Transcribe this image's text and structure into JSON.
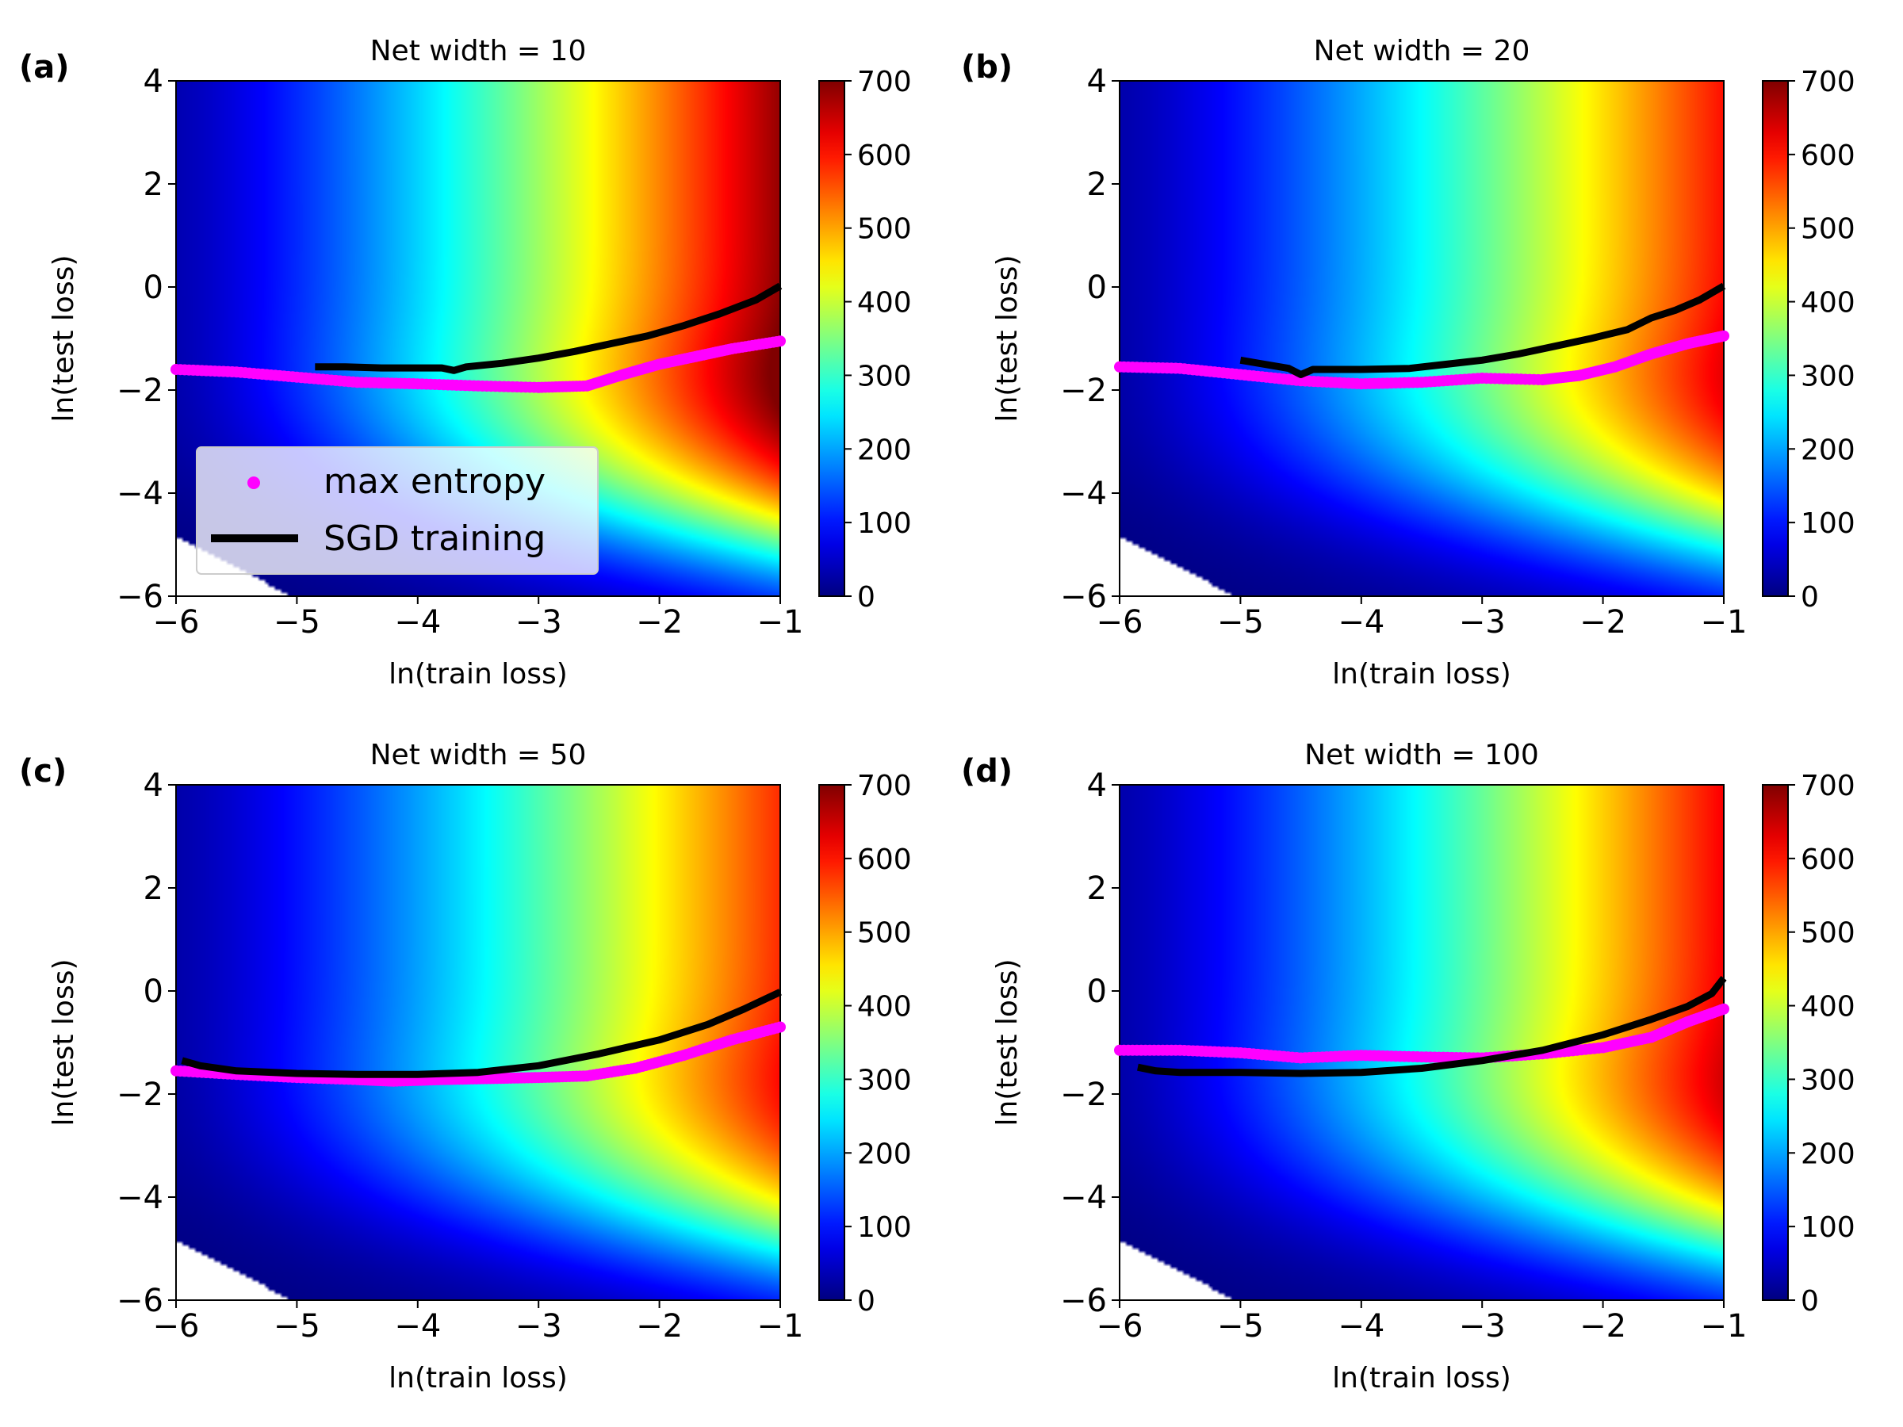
{
  "chart_data": [
    {
      "type": "heatmap",
      "panel_label": "(a)",
      "title": "Net width = 10",
      "xlabel": "ln(train loss)",
      "ylabel": "ln(test loss)",
      "xlim": [
        -6,
        -1
      ],
      "ylim": [
        -6,
        4
      ],
      "xticks": [
        -6,
        -5,
        -4,
        -3,
        -2,
        -1
      ],
      "yticks": [
        -6,
        -4,
        -2,
        0,
        2,
        4
      ],
      "colorbar": {
        "min": 0,
        "max": 700,
        "ticks": [
          0,
          100,
          200,
          300,
          400,
          500,
          600,
          700
        ],
        "colormap": "jet"
      },
      "intensity": 1.0,
      "series": [
        {
          "name": "max entropy",
          "style": "dots",
          "color": "#ff00ff",
          "x": [
            -6.0,
            -5.5,
            -5.0,
            -4.5,
            -4.0,
            -3.5,
            -3.0,
            -2.6,
            -2.3,
            -2.0,
            -1.7,
            -1.4,
            -1.0
          ],
          "y": [
            -1.6,
            -1.65,
            -1.75,
            -1.85,
            -1.88,
            -1.92,
            -1.95,
            -1.92,
            -1.7,
            -1.5,
            -1.35,
            -1.2,
            -1.05
          ]
        },
        {
          "name": "SGD training",
          "style": "line",
          "color": "#000000",
          "x": [
            -4.85,
            -4.6,
            -4.3,
            -4.0,
            -3.8,
            -3.7,
            -3.6,
            -3.3,
            -3.0,
            -2.7,
            -2.4,
            -2.1,
            -1.8,
            -1.5,
            -1.2,
            -1.0
          ],
          "y": [
            -1.55,
            -1.55,
            -1.57,
            -1.57,
            -1.57,
            -1.62,
            -1.55,
            -1.48,
            -1.38,
            -1.25,
            -1.1,
            -0.95,
            -0.75,
            -0.52,
            -0.25,
            0.02
          ]
        }
      ],
      "legend": {
        "position": "lower-left",
        "entries": [
          "max entropy",
          "SGD training"
        ]
      }
    },
    {
      "type": "heatmap",
      "panel_label": "(b)",
      "title": "Net width = 20",
      "xlabel": "ln(train loss)",
      "ylabel": "ln(test loss)",
      "xlim": [
        -6,
        -1
      ],
      "ylim": [
        -6,
        4
      ],
      "xticks": [
        -6,
        -5,
        -4,
        -3,
        -2,
        -1
      ],
      "yticks": [
        -6,
        -4,
        -2,
        0,
        2,
        4
      ],
      "colorbar": {
        "min": 0,
        "max": 700,
        "ticks": [
          0,
          100,
          200,
          300,
          400,
          500,
          600,
          700
        ],
        "colormap": "jet"
      },
      "intensity": 0.88,
      "series": [
        {
          "name": "max entropy",
          "style": "dots",
          "color": "#ff00ff",
          "x": [
            -6.0,
            -5.5,
            -5.0,
            -4.5,
            -4.0,
            -3.5,
            -3.0,
            -2.5,
            -2.2,
            -1.9,
            -1.6,
            -1.3,
            -1.0
          ],
          "y": [
            -1.55,
            -1.58,
            -1.7,
            -1.82,
            -1.88,
            -1.85,
            -1.77,
            -1.8,
            -1.72,
            -1.55,
            -1.3,
            -1.1,
            -0.95
          ]
        },
        {
          "name": "SGD training",
          "style": "line",
          "color": "#000000",
          "x": [
            -5.0,
            -4.8,
            -4.6,
            -4.5,
            -4.4,
            -4.0,
            -3.6,
            -3.3,
            -3.0,
            -2.7,
            -2.4,
            -2.1,
            -1.8,
            -1.6,
            -1.4,
            -1.2,
            -1.0
          ],
          "y": [
            -1.42,
            -1.5,
            -1.58,
            -1.7,
            -1.6,
            -1.6,
            -1.58,
            -1.5,
            -1.42,
            -1.3,
            -1.15,
            -1.0,
            -0.83,
            -0.6,
            -0.45,
            -0.25,
            0.02
          ]
        }
      ]
    },
    {
      "type": "heatmap",
      "panel_label": "(c)",
      "title": "Net width = 50",
      "xlabel": "ln(train loss)",
      "ylabel": "ln(test loss)",
      "xlim": [
        -6,
        -1
      ],
      "ylim": [
        -6,
        4
      ],
      "xticks": [
        -6,
        -5,
        -4,
        -3,
        -2,
        -1
      ],
      "yticks": [
        -6,
        -4,
        -2,
        0,
        2,
        4
      ],
      "colorbar": {
        "min": 0,
        "max": 700,
        "ticks": [
          0,
          100,
          200,
          300,
          400,
          500,
          600,
          700
        ],
        "colormap": "jet"
      },
      "intensity": 0.85,
      "series": [
        {
          "name": "max entropy",
          "style": "dots",
          "color": "#ff00ff",
          "x": [
            -6.0,
            -5.5,
            -5.0,
            -4.5,
            -4.2,
            -3.8,
            -3.4,
            -3.0,
            -2.6,
            -2.2,
            -1.8,
            -1.4,
            -1.0
          ],
          "y": [
            -1.55,
            -1.62,
            -1.68,
            -1.72,
            -1.75,
            -1.72,
            -1.7,
            -1.68,
            -1.65,
            -1.5,
            -1.25,
            -0.95,
            -0.7
          ]
        },
        {
          "name": "SGD training",
          "style": "line",
          "color": "#000000",
          "x": [
            -5.95,
            -5.8,
            -5.5,
            -5.0,
            -4.5,
            -4.0,
            -3.5,
            -3.0,
            -2.5,
            -2.0,
            -1.6,
            -1.3,
            -1.0
          ],
          "y": [
            -1.35,
            -1.45,
            -1.55,
            -1.6,
            -1.62,
            -1.62,
            -1.58,
            -1.45,
            -1.22,
            -0.95,
            -0.65,
            -0.35,
            -0.02
          ]
        }
      ]
    },
    {
      "type": "heatmap",
      "panel_label": "(d)",
      "title": "Net width = 100",
      "xlabel": "ln(train loss)",
      "ylabel": "ln(test loss)",
      "xlim": [
        -6,
        -1
      ],
      "ylim": [
        -6,
        4
      ],
      "xticks": [
        -6,
        -5,
        -4,
        -3,
        -2,
        -1
      ],
      "yticks": [
        -6,
        -4,
        -2,
        0,
        2,
        4
      ],
      "colorbar": {
        "min": 0,
        "max": 700,
        "ticks": [
          0,
          100,
          200,
          300,
          400,
          500,
          600,
          700
        ],
        "colormap": "jet"
      },
      "intensity": 0.9,
      "series": [
        {
          "name": "max entropy",
          "style": "dots",
          "color": "#ff00ff",
          "x": [
            -6.0,
            -5.5,
            -5.0,
            -4.5,
            -4.0,
            -3.5,
            -3.0,
            -2.5,
            -2.0,
            -1.6,
            -1.3,
            -1.0
          ],
          "y": [
            -1.15,
            -1.15,
            -1.2,
            -1.3,
            -1.25,
            -1.28,
            -1.3,
            -1.22,
            -1.1,
            -0.9,
            -0.6,
            -0.35
          ]
        },
        {
          "name": "SGD training",
          "style": "line",
          "color": "#000000",
          "x": [
            -5.85,
            -5.7,
            -5.5,
            -5.0,
            -4.5,
            -4.0,
            -3.5,
            -3.0,
            -2.5,
            -2.0,
            -1.6,
            -1.3,
            -1.1,
            -1.0
          ],
          "y": [
            -1.48,
            -1.55,
            -1.58,
            -1.58,
            -1.6,
            -1.58,
            -1.5,
            -1.35,
            -1.15,
            -0.85,
            -0.55,
            -0.3,
            -0.05,
            0.25
          ]
        }
      ]
    }
  ]
}
